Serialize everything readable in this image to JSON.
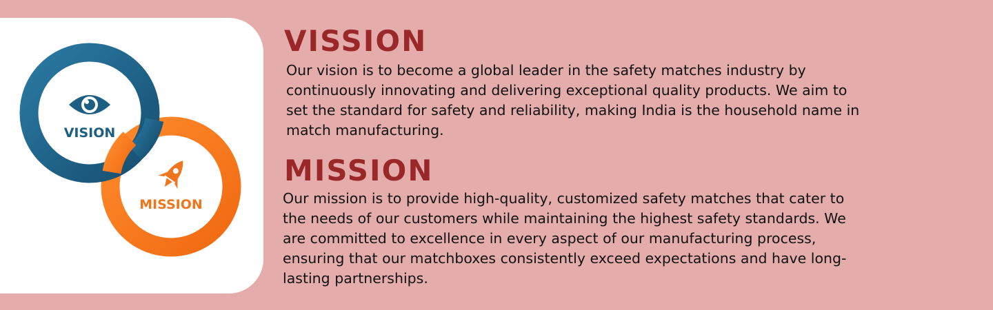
{
  "logo": {
    "vision_label": "VISION",
    "mission_label": "MISSION",
    "colors": {
      "vision_ring": "#1c5f83",
      "mission_ring": "#f0761e",
      "background": "#ffffff"
    }
  },
  "vision": {
    "heading": "VISSION",
    "text": "Our vision is to become a global leader in the safety matches industry by continuously innovating and delivering exceptional quality products. We aim to set the standard for safety and reliability, making India is the household name in match manufacturing."
  },
  "mission": {
    "heading": "MISSION",
    "text": "Our mission is to provide high-quality, customized safety matches that cater to the needs of our customers while maintaining the highest safety standards. We are committed to excellence in every aspect of our manufacturing process, ensuring that our matchboxes consistently exceed expectations and have long-lasting partnerships."
  },
  "theme": {
    "page_bg": "#e5acac",
    "heading_color": "#9a2828",
    "text_color": "#111111"
  }
}
